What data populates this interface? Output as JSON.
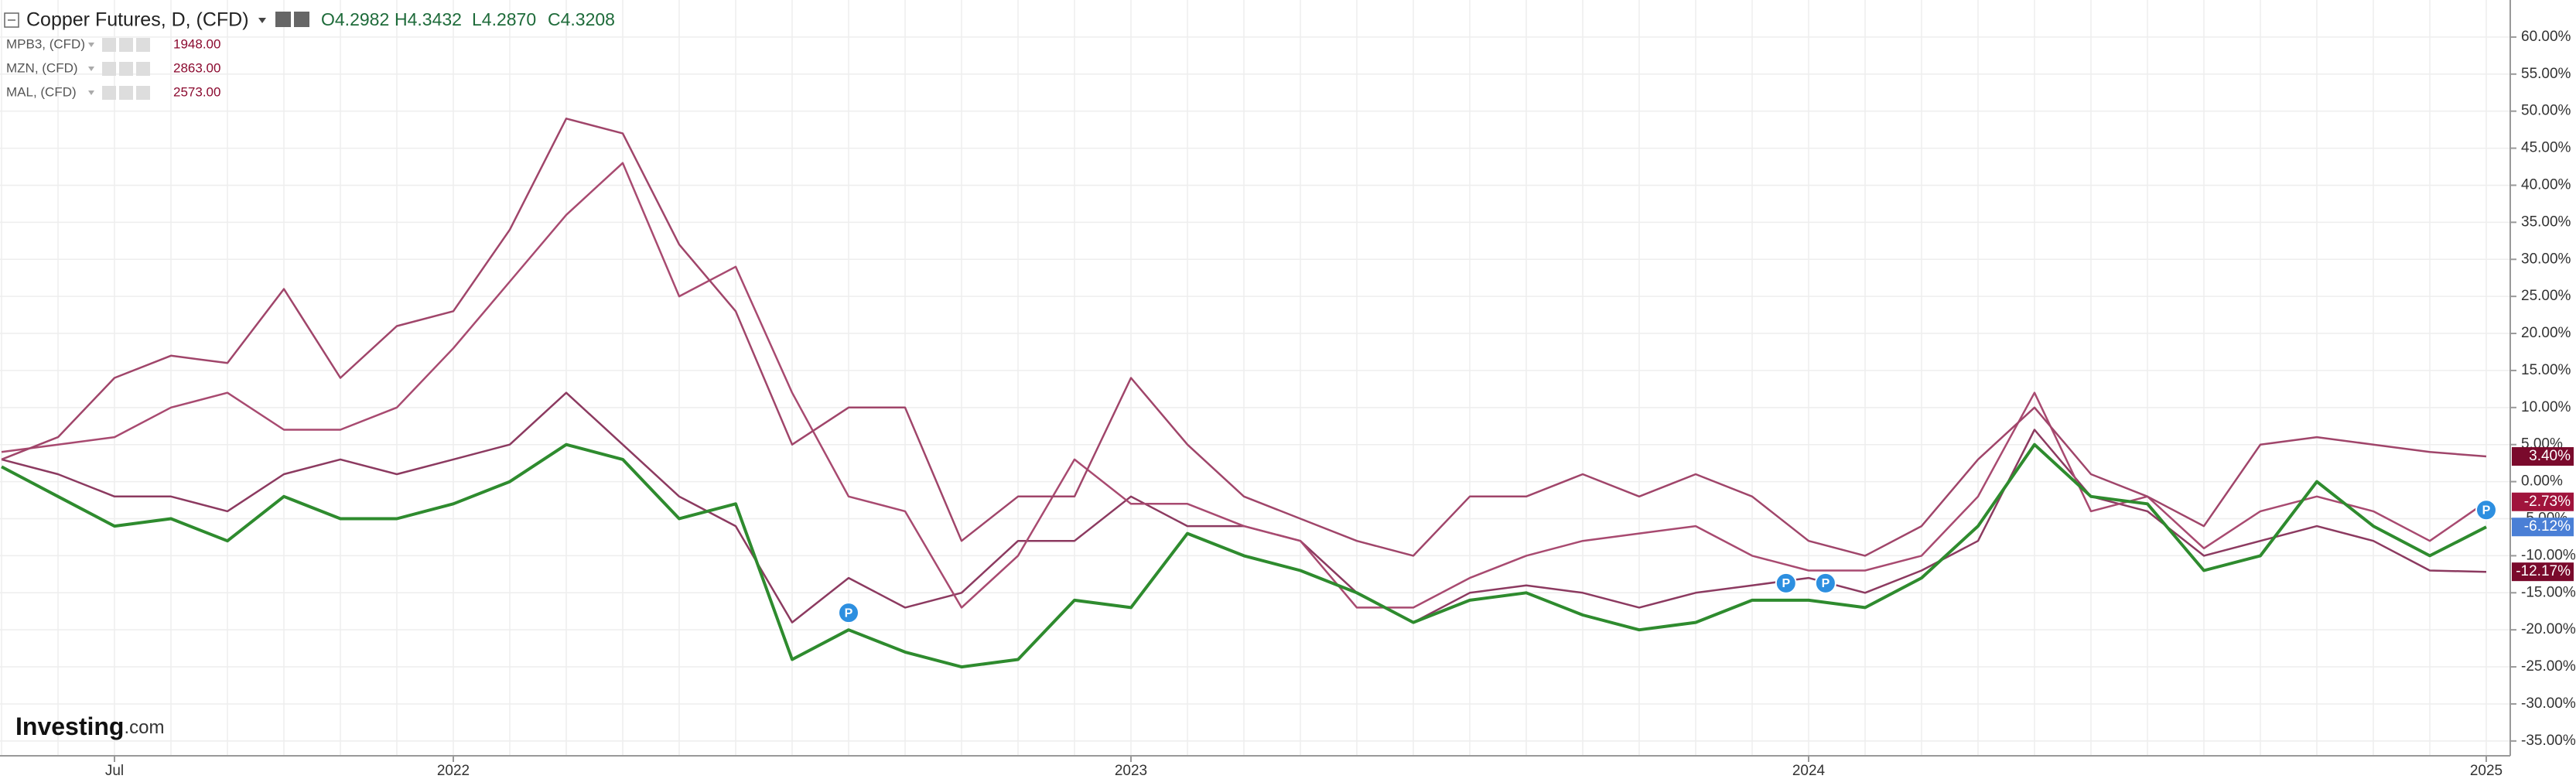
{
  "chart_data": {
    "type": "line",
    "ohlc": [
      "O4.2982",
      "H4.3432",
      "L4.2870",
      "C4.3208"
    ],
    "brand": "Investing",
    "brand_suffix": ".com",
    "annotations": [
      "P",
      "P",
      "P",
      "P"
    ],
    "categories": [
      null,
      null,
      "Jul",
      null,
      null,
      null,
      null,
      null,
      "2022",
      null,
      null,
      null,
      null,
      null,
      null,
      null,
      null,
      null,
      null,
      null,
      "2023",
      null,
      null,
      null,
      null,
      null,
      null,
      null,
      null,
      null,
      null,
      null,
      "2024",
      null,
      null,
      null,
      null,
      null,
      null,
      null,
      null,
      null,
      null,
      null,
      "2025"
    ],
    "ylim": [
      -37,
      65
    ],
    "yticks": [
      {
        "value": 60,
        "label": "60.00%"
      },
      {
        "value": 55,
        "label": "55.00%"
      },
      {
        "value": 50,
        "label": "50.00%"
      },
      {
        "value": 45,
        "label": "45.00%"
      },
      {
        "value": 40,
        "label": "40.00%"
      },
      {
        "value": 35,
        "label": "35.00%"
      },
      {
        "value": 30,
        "label": "30.00%"
      },
      {
        "value": 25,
        "label": "25.00%"
      },
      {
        "value": 20,
        "label": "20.00%"
      },
      {
        "value": 15,
        "label": "15.00%"
      },
      {
        "value": 10,
        "label": "10.00%"
      },
      {
        "value": 5,
        "label": "5.00%"
      },
      {
        "value": 0,
        "label": "0.00%"
      },
      {
        "value": -5,
        "label": "-5.00%"
      },
      {
        "value": -10,
        "label": "-10.00%"
      },
      {
        "value": -15,
        "label": "-15.00%"
      },
      {
        "value": -20,
        "label": "-20.00%"
      },
      {
        "value": -25,
        "label": "-25.00%"
      },
      {
        "value": -30,
        "label": "-30.00%"
      },
      {
        "value": -35,
        "label": "-35.00%"
      }
    ],
    "grid": true,
    "series": [
      {
        "name": "Copper Futures, D, (CFD)",
        "color": "#2e8b2e",
        "tag_color": "#4a7fd6",
        "values": [
          2,
          -2,
          -6,
          -5,
          -8,
          -2,
          -5,
          -5,
          -3,
          0,
          5,
          3,
          -5,
          -3,
          -24,
          -20,
          -23,
          -25,
          -24,
          -16,
          -17,
          -7,
          -10,
          -12,
          -15,
          -19,
          -16,
          -15,
          -18,
          -20,
          -19,
          -16,
          -16,
          -17,
          -13,
          -6,
          5,
          -2,
          -3,
          -12,
          -10,
          0,
          -6,
          -10,
          -6.12
        ],
        "value_labels": [
          null,
          null,
          null,
          null,
          null,
          null,
          null,
          null,
          null,
          null,
          null,
          null,
          null,
          null,
          null,
          null,
          null,
          null,
          null,
          null,
          null,
          null,
          null,
          null,
          null,
          null,
          null,
          null,
          null,
          null,
          null,
          null,
          null,
          null,
          null,
          null,
          null,
          null,
          null,
          null,
          null,
          null,
          null,
          null,
          "-6.12%"
        ]
      },
      {
        "name": "MPB3, (CFD)",
        "legend_value": "1948.00",
        "color": "#a0456a",
        "tag_color": "#7a0a2c",
        "values": [
          3,
          6,
          14,
          17,
          16,
          26,
          14,
          21,
          23,
          34,
          49,
          47,
          32,
          23,
          5,
          10,
          10,
          -8,
          -2,
          -2,
          14,
          5,
          -2,
          -5,
          -8,
          -10,
          -2,
          -2,
          1,
          -2,
          1,
          -2,
          -8,
          -10,
          -6,
          3,
          10,
          1,
          -2,
          -6,
          5,
          6,
          5,
          4,
          3.4
        ],
        "value_labels": [
          null,
          null,
          null,
          null,
          null,
          null,
          null,
          null,
          null,
          null,
          null,
          null,
          null,
          null,
          null,
          null,
          null,
          null,
          null,
          null,
          null,
          null,
          null,
          null,
          null,
          null,
          null,
          null,
          null,
          null,
          null,
          null,
          null,
          null,
          null,
          null,
          null,
          null,
          null,
          null,
          null,
          null,
          null,
          null,
          "3.40%"
        ]
      },
      {
        "name": "MZN, (CFD)",
        "legend_value": "2863.00",
        "color": "#a84a70",
        "tag_color": "#a0143c",
        "values": [
          4,
          5,
          6,
          10,
          12,
          7,
          7,
          10,
          18,
          27,
          36,
          43,
          25,
          29,
          12,
          -2,
          -4,
          -17,
          -10,
          3,
          -3,
          -3,
          -6,
          -8,
          -17,
          -17,
          -13,
          -10,
          -8,
          -7,
          -6,
          -10,
          -12,
          -12,
          -10,
          -2,
          12,
          -4,
          -2,
          -9,
          -4,
          -2,
          -4,
          -8,
          -2.73
        ],
        "value_labels": [
          null,
          null,
          null,
          null,
          null,
          null,
          null,
          null,
          null,
          null,
          null,
          null,
          null,
          null,
          null,
          null,
          null,
          null,
          null,
          null,
          null,
          null,
          null,
          null,
          null,
          null,
          null,
          null,
          null,
          null,
          null,
          null,
          null,
          null,
          null,
          null,
          null,
          null,
          null,
          null,
          null,
          null,
          null,
          null,
          "-2.73%"
        ]
      },
      {
        "name": "MAL, (CFD)",
        "legend_value": "2573.00",
        "color": "#8c3a60",
        "tag_color": "#7a0a2c",
        "values": [
          3,
          1,
          -2,
          -2,
          -4,
          1,
          3,
          1,
          3,
          5,
          12,
          5,
          -2,
          -6,
          -19,
          -13,
          -17,
          -15,
          -8,
          -8,
          -2,
          -6,
          -6,
          -8,
          -15,
          -19,
          -15,
          -14,
          -15,
          -17,
          -15,
          -14,
          -13,
          -15,
          -12,
          -8,
          7,
          -2,
          -4,
          -10,
          -8,
          -6,
          -8,
          -12,
          -12.17
        ],
        "value_labels": [
          null,
          null,
          null,
          null,
          null,
          null,
          null,
          null,
          null,
          null,
          null,
          null,
          null,
          null,
          null,
          null,
          null,
          null,
          null,
          null,
          null,
          null,
          null,
          null,
          null,
          null,
          null,
          null,
          null,
          null,
          null,
          null,
          null,
          null,
          null,
          null,
          null,
          null,
          null,
          null,
          null,
          null,
          null,
          null,
          "-12.17%"
        ]
      }
    ]
  }
}
